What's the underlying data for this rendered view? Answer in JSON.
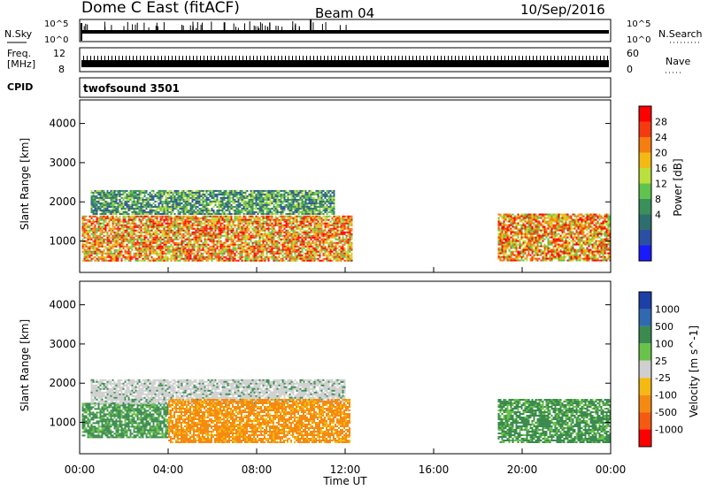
{
  "header": {
    "title": "Dome C East (fitACF)",
    "beam": "Beam 04",
    "date": "10/Sep/2016"
  },
  "noise_panel": {
    "left_label": "N.Sky",
    "right_label": "N.Search",
    "left_ticks": [
      "10^5",
      "10^0"
    ],
    "right_ticks": [
      "10^5",
      "10^0"
    ]
  },
  "freq_panel": {
    "left_label_1": "Freq.",
    "left_label_2": "[MHz]",
    "right_label": "Nave",
    "left_ticks": [
      "12",
      "8"
    ],
    "right_ticks": [
      "60",
      "0"
    ]
  },
  "cpid_panel": {
    "left_label": "CPID",
    "text": "twofsound 3501"
  },
  "x_axis": {
    "label": "Time UT",
    "ticks": [
      "00:00",
      "04:00",
      "08:00",
      "12:00",
      "16:00",
      "20:00",
      "00:00"
    ]
  },
  "chart_data": [
    {
      "type": "heatmap",
      "name": "power",
      "ylabel": "Slant Range [km]",
      "yticks": [
        1000,
        2000,
        3000,
        4000
      ],
      "ylim": [
        200,
        4600
      ],
      "xlim_hours": [
        0,
        24
      ],
      "colorbar": {
        "label": "Power [dB]",
        "ticks": [
          "28",
          "24",
          "20",
          "16",
          "12",
          "8",
          "4"
        ],
        "colors": [
          "#ff0000",
          "#f63a10",
          "#f57d12",
          "#f5b913",
          "#b9e03c",
          "#5fc34e",
          "#3a8f5a",
          "#2f6e6f",
          "#2b4fa3",
          "#1a1aff"
        ]
      },
      "regions": [
        {
          "t0": 0.1,
          "t1": 12.3,
          "r0": 500,
          "r1": 1650,
          "level": "mixed-high"
        },
        {
          "t0": 0.5,
          "t1": 11.5,
          "r0": 1700,
          "r1": 2300,
          "level": "mixed-low"
        },
        {
          "t0": 18.9,
          "t1": 24.0,
          "r0": 500,
          "r1": 1700,
          "level": "mixed-high"
        }
      ]
    },
    {
      "type": "heatmap",
      "name": "velocity",
      "ylabel": "Slant Range [km]",
      "yticks": [
        1000,
        2000,
        3000,
        4000
      ],
      "ylim": [
        200,
        4600
      ],
      "xlim_hours": [
        0,
        24
      ],
      "colorbar": {
        "label": "Velocity [m s^-1]",
        "ticks": [
          "1000",
          "500",
          "100",
          "25",
          "-25",
          "-100",
          "-500",
          "-1000"
        ],
        "colors": [
          "#1c3fa8",
          "#2f6ab0",
          "#3b8a4f",
          "#6bc24a",
          "#cfcfcf",
          "#f5b913",
          "#f58a12",
          "#f55a10",
          "#ff0000"
        ]
      },
      "regions": [
        {
          "t0": 0.1,
          "t1": 4.0,
          "r0": 600,
          "r1": 1500,
          "level": "green"
        },
        {
          "t0": 0.5,
          "t1": 12.0,
          "r0": 1500,
          "r1": 2100,
          "level": "grey"
        },
        {
          "t0": 4.0,
          "t1": 12.2,
          "r0": 500,
          "r1": 1600,
          "level": "orange"
        },
        {
          "t0": 18.9,
          "t1": 24.0,
          "r0": 500,
          "r1": 1600,
          "level": "green"
        }
      ]
    }
  ]
}
